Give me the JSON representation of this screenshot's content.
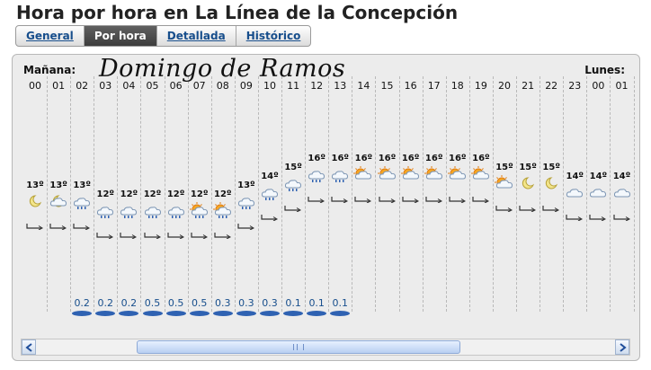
{
  "page": {
    "title": "Hora por hora en La Línea de la Concepción"
  },
  "tabs": [
    {
      "label": "General",
      "active": false
    },
    {
      "label": "Por hora",
      "active": true
    },
    {
      "label": "Detallada",
      "active": false
    },
    {
      "label": "Histórico",
      "active": false
    }
  ],
  "panel": {
    "morning_label": "Mañana:",
    "day_name": "Domingo de Ramos",
    "next_label": "Lunes:"
  },
  "hours": [
    {
      "hour": "00",
      "temp": "13º",
      "icon": "moon-icon"
    },
    {
      "hour": "01",
      "temp": "13º",
      "icon": "moon-cloud-icon"
    },
    {
      "hour": "02",
      "temp": "13º",
      "icon": "cloud-rain-icon",
      "precip": "0.2"
    },
    {
      "hour": "03",
      "temp": "12º",
      "icon": "cloud-rain-icon",
      "precip": "0.2"
    },
    {
      "hour": "04",
      "temp": "12º",
      "icon": "cloud-rain-icon",
      "precip": "0.2"
    },
    {
      "hour": "05",
      "temp": "12º",
      "icon": "cloud-rain-icon",
      "precip": "0.5"
    },
    {
      "hour": "06",
      "temp": "12º",
      "icon": "cloud-rain-icon",
      "precip": "0.5"
    },
    {
      "hour": "07",
      "temp": "12º",
      "icon": "sun-cloud-rain-icon",
      "precip": "0.5"
    },
    {
      "hour": "08",
      "temp": "12º",
      "icon": "sun-cloud-rain-icon",
      "precip": "0.3"
    },
    {
      "hour": "09",
      "temp": "13º",
      "icon": "cloud-rain-icon",
      "precip": "0.3"
    },
    {
      "hour": "10",
      "temp": "14º",
      "icon": "cloud-rain-icon",
      "precip": "0.3"
    },
    {
      "hour": "11",
      "temp": "15º",
      "icon": "cloud-rain-icon",
      "precip": "0.1"
    },
    {
      "hour": "12",
      "temp": "16º",
      "icon": "cloud-rain-icon",
      "precip": "0.1"
    },
    {
      "hour": "13",
      "temp": "16º",
      "icon": "cloud-rain-icon",
      "precip": "0.1"
    },
    {
      "hour": "14",
      "temp": "16º",
      "icon": "sun-cloud-icon"
    },
    {
      "hour": "15",
      "temp": "16º",
      "icon": "sun-cloud-icon"
    },
    {
      "hour": "16",
      "temp": "16º",
      "icon": "sun-cloud-icon"
    },
    {
      "hour": "17",
      "temp": "16º",
      "icon": "sun-cloud-icon"
    },
    {
      "hour": "18",
      "temp": "16º",
      "icon": "sun-cloud-icon"
    },
    {
      "hour": "19",
      "temp": "16º",
      "icon": "sun-cloud-icon"
    },
    {
      "hour": "20",
      "temp": "15º",
      "icon": "sun-cloud-icon"
    },
    {
      "hour": "21",
      "temp": "15º",
      "icon": "moon-icon"
    },
    {
      "hour": "22",
      "temp": "15º",
      "icon": "moon-icon"
    },
    {
      "hour": "23",
      "temp": "14º",
      "icon": "cloud-icon"
    },
    {
      "hour": "00",
      "temp": "14º",
      "icon": "cloud-icon"
    },
    {
      "hour": "01",
      "temp": "14º",
      "icon": "cloud-icon"
    }
  ],
  "temp_scale": {
    "min": 12,
    "max": 16
  },
  "scrollbar": {
    "left_icon": "arrow-left-icon",
    "right_icon": "arrow-right-icon"
  },
  "colors": {
    "active_tab": "#4a4a4a",
    "link": "#174e8c",
    "precip": "#2f62b2",
    "panel_bg": "#ececec",
    "sun": "#f39a1d"
  }
}
